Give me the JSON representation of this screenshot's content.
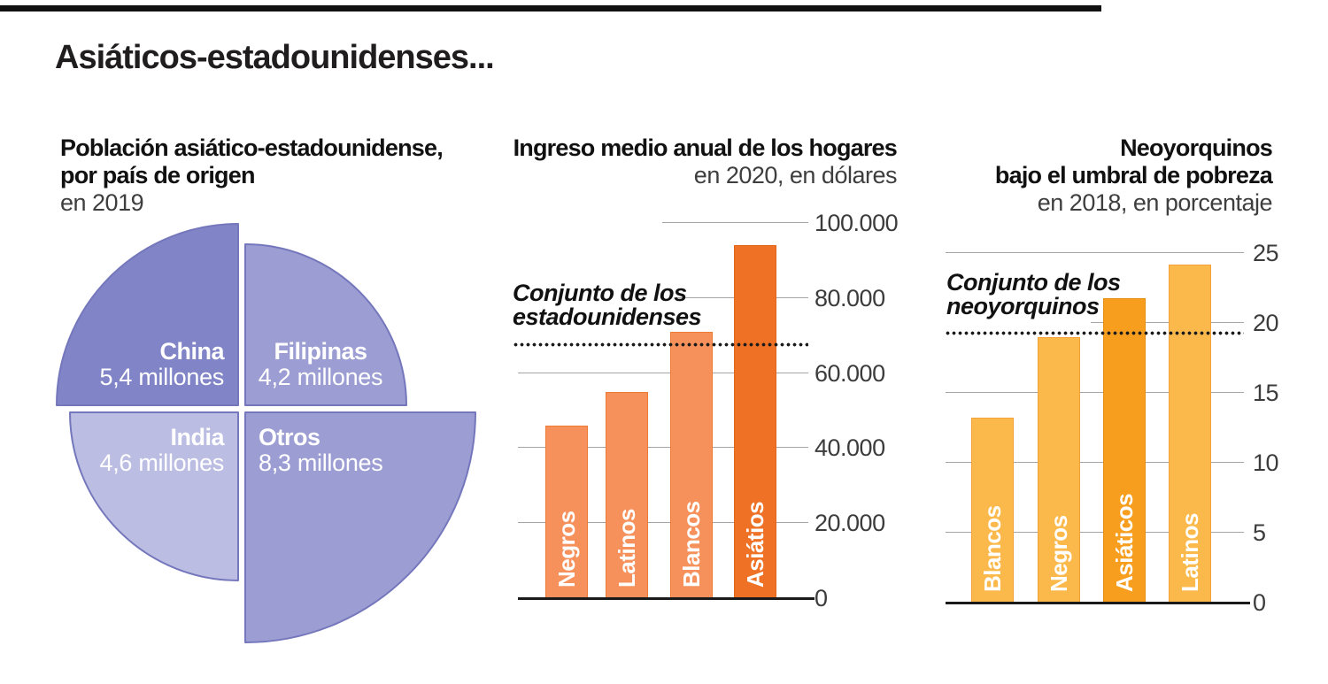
{
  "page": {
    "title": "Asiáticos-estadounidenses..."
  },
  "colors": {
    "pie_stroke": "#7477bb",
    "gridline": "#a5a5a5",
    "axis_text": "#3c3c3c",
    "reference_dots": "#1a1a1a"
  },
  "chart_data": [
    {
      "type": "pie",
      "title": "Población asiático-estadounidense, por país de origen",
      "title_lines": [
        "Población asiático-estadounidense,",
        "por país de origen"
      ],
      "subtitle": "en 2019",
      "labels": [
        "China",
        "Filipinas",
        "India",
        "Otros"
      ],
      "values": [
        5.4,
        4.2,
        4.6,
        8.3
      ],
      "value_labels": [
        "5,4 millones",
        "4,2 millones",
        "4,6 millones",
        "8,3 millones"
      ],
      "colors": [
        "#8184c6",
        "#9c9ed3",
        "#bbbde2",
        "#9c9ed3"
      ]
    },
    {
      "type": "bar",
      "title": "Ingreso medio anual de los hogares",
      "subtitle": "en 2020, en dólares",
      "categories": [
        "Negros",
        "Latinos",
        "Blancos",
        "Asiátios"
      ],
      "values": [
        46000,
        55000,
        71000,
        94000
      ],
      "highlight_index": 3,
      "bar_fill": "#f6915c",
      "bar_stroke": "#ed7b35",
      "highlight_fill": "#ee7125",
      "highlight_stroke": "#e2661b",
      "reference_line": {
        "label_lines": [
          "Conjunto de los",
          "estadounidenses"
        ],
        "value": 67500
      },
      "ylim": [
        0,
        100000
      ],
      "yticks": [
        0,
        20000,
        40000,
        60000,
        80000,
        100000
      ],
      "ytick_labels": [
        "0",
        "20.000",
        "40.000",
        "60.000",
        "80.000",
        "100.000"
      ]
    },
    {
      "type": "bar",
      "title": "Neoyorquinos bajo el umbral de pobreza",
      "title_lines": [
        "Neoyorquinos",
        "bajo el umbral de pobreza"
      ],
      "subtitle": "en 2018, en porcentaje",
      "categories": [
        "Blancos",
        "Negros",
        "Asiáticos",
        "Latinos"
      ],
      "values": [
        13.2,
        19,
        21.8,
        24.2
      ],
      "highlight_index": 2,
      "bar_fill": "#fbb94c",
      "bar_stroke": "#f2a238",
      "highlight_fill": "#f79e1f",
      "highlight_stroke": "#e78f12",
      "reference_line": {
        "label_lines": [
          "Conjunto de los",
          "neoyorquinos"
        ],
        "value": 19.3
      },
      "ylim": [
        0,
        25
      ],
      "yticks": [
        0,
        5,
        10,
        15,
        20,
        25
      ],
      "ytick_labels": [
        "0",
        "5",
        "10",
        "15",
        "20",
        "25"
      ]
    }
  ]
}
